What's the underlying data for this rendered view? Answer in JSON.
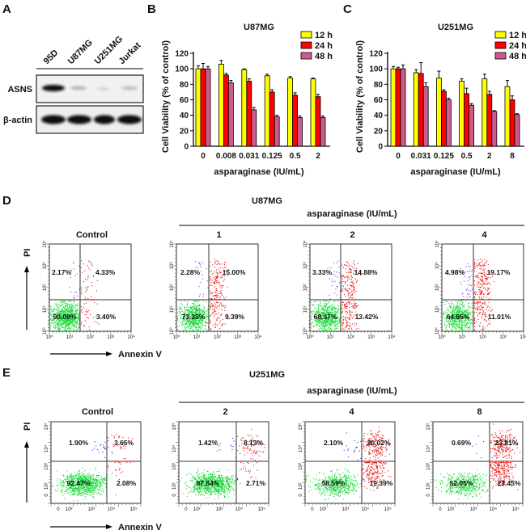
{
  "panel_a": {
    "label": "A",
    "lanes": [
      "95D",
      "U87MG",
      "U251MG",
      "Jurkat"
    ],
    "rows": [
      "ASNS",
      "β-actin"
    ]
  },
  "chart_data": [
    {
      "panel": "B",
      "type": "bar",
      "title": "U87MG",
      "xlabel": "asparaginase (IU/mL)",
      "ylabel": "Cell Viability (% of control)",
      "categories": [
        "0",
        "0.008",
        "0.031",
        "0.125",
        "0.5",
        "2"
      ],
      "ylim": [
        0,
        120
      ],
      "yticks": [
        0,
        20,
        40,
        60,
        80,
        100,
        120
      ],
      "legend": "top-right",
      "series": [
        {
          "name": "12 h",
          "color": "#ffff00",
          "values": [
            100,
            106,
            99,
            91,
            88,
            87
          ],
          "errors": [
            4,
            5,
            1,
            2,
            2,
            1
          ]
        },
        {
          "name": "24 h",
          "color": "#ff0000",
          "values": [
            100,
            92,
            84,
            70,
            66,
            64
          ],
          "errors": [
            7,
            2,
            3,
            3,
            3,
            3
          ]
        },
        {
          "name": "48 h",
          "color": "#cc5b8e",
          "values": [
            100,
            82,
            47,
            38,
            37,
            37
          ],
          "errors": [
            3,
            3,
            3,
            2,
            2,
            2
          ]
        }
      ]
    },
    {
      "panel": "C",
      "type": "bar",
      "title": "U251MG",
      "xlabel": "asparaginase (IU/mL)",
      "ylabel": "Cell Viability (% of control)",
      "categories": [
        "0",
        "0.031",
        "0.125",
        "0.5",
        "2",
        "8"
      ],
      "ylim": [
        0,
        120
      ],
      "yticks": [
        0,
        20,
        40,
        60,
        80,
        100,
        120
      ],
      "legend": "top-right",
      "series": [
        {
          "name": "12 h",
          "color": "#ffff00",
          "values": [
            100,
            95,
            88,
            84,
            87,
            77
          ],
          "errors": [
            3,
            4,
            9,
            3,
            6,
            8
          ]
        },
        {
          "name": "24 h",
          "color": "#ff0000",
          "values": [
            100,
            94,
            71,
            68,
            67,
            60
          ],
          "errors": [
            2,
            14,
            2,
            7,
            4,
            5
          ]
        },
        {
          "name": "48 h",
          "color": "#cc5b8e",
          "values": [
            100,
            77,
            60,
            53,
            45,
            41
          ],
          "errors": [
            5,
            5,
            2,
            2,
            1,
            1
          ]
        }
      ]
    }
  ],
  "panel_d": {
    "label": "D",
    "cell_line": "U87MG",
    "treatment_label": "asparaginase (IU/mL)",
    "x_axis": "Annexin V",
    "y_axis": "PI",
    "x_ticks": [
      "10⁰",
      "10¹",
      "10²",
      "10³",
      "10⁴"
    ],
    "y_ticks": [
      "10⁰",
      "10¹",
      "10²",
      "10³",
      "10⁴"
    ],
    "plots": [
      {
        "title": "Control",
        "ul": "2.17%",
        "ur": "4.33%",
        "ll": "90.09%",
        "lr": "3.40%"
      },
      {
        "title": "1",
        "ul": "2.28%",
        "ur": "15.00%",
        "ll": "73.33%",
        "lr": "9.39%"
      },
      {
        "title": "2",
        "ul": "3.33%",
        "ur": "14.88%",
        "ll": "68.37%",
        "lr": "13.42%"
      },
      {
        "title": "4",
        "ul": "4.98%",
        "ur": "19.17%",
        "ll": "64.85%",
        "lr": "11.01%"
      }
    ]
  },
  "panel_e": {
    "label": "E",
    "cell_line": "U251MG",
    "treatment_label": "asparaginase (IU/mL)",
    "x_axis": "Annexin V",
    "y_axis": "PI",
    "x_ticks": [
      "0",
      "10²",
      "10³",
      "10⁴",
      "10⁵"
    ],
    "y_ticks": [
      "0",
      "10²",
      "10³",
      "10⁴",
      "10⁵"
    ],
    "plots": [
      {
        "title": "Control",
        "ul": "1.90%",
        "ur": "3.65%",
        "ll": "92.47%",
        "lr": "2.08%"
      },
      {
        "title": "2",
        "ul": "1.42%",
        "ur": "8.13%",
        "ll": "87.84%",
        "lr": "2.71%"
      },
      {
        "title": "4",
        "ul": "2.10%",
        "ur": "20.02%",
        "ll": "58.59%",
        "lr": "19.39%"
      },
      {
        "title": "8",
        "ul": "0.69%",
        "ur": "23.81%",
        "ll": "52.05%",
        "lr": "23.45%"
      }
    ]
  }
}
